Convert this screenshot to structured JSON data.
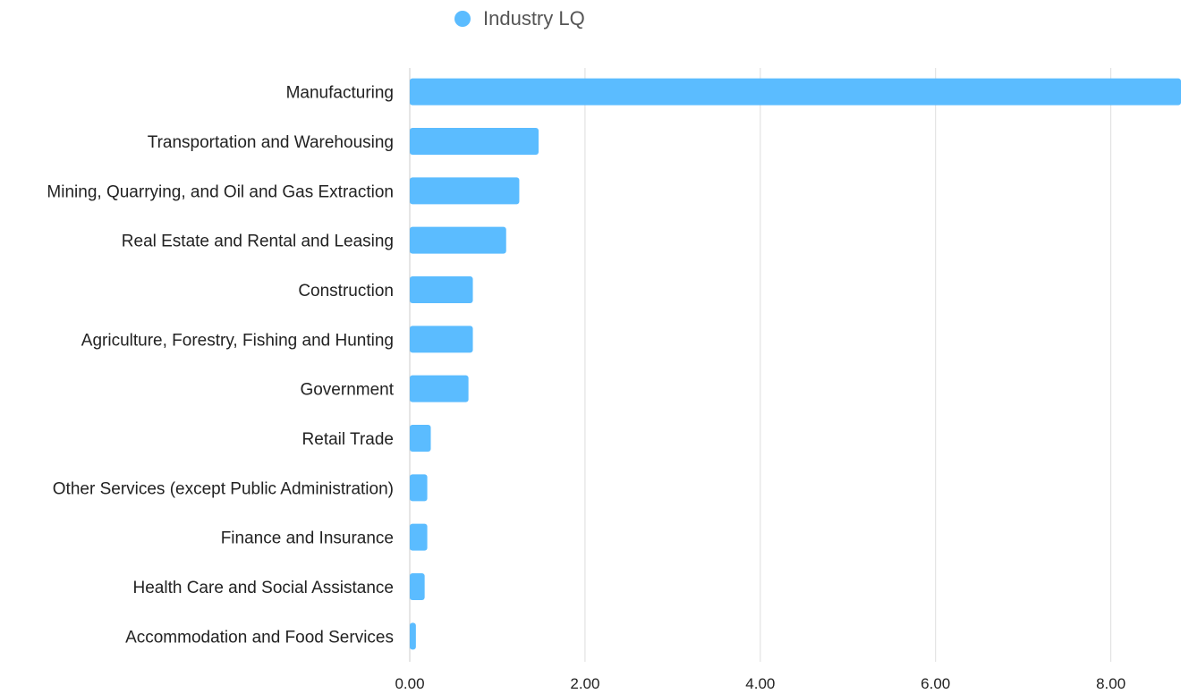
{
  "legend": {
    "label": "Industry LQ"
  },
  "colors": {
    "bar": "#5BBCFF",
    "grid": "#DDDDDD",
    "text": "#222222",
    "legend_text": "#555555"
  },
  "chart_data": {
    "type": "bar",
    "orientation": "horizontal",
    "categories": [
      "Manufacturing",
      "Transportation and Warehousing",
      "Mining, Quarrying, and Oil and Gas Extraction",
      "Real Estate and Rental and Leasing",
      "Construction",
      "Agriculture, Forestry, Fishing and Hunting",
      "Government",
      "Retail Trade",
      "Other Services (except Public Administration)",
      "Finance and Insurance",
      "Health Care and Social Assistance",
      "Accommodation and Food Services"
    ],
    "series": [
      {
        "name": "Industry LQ",
        "values": [
          8.8,
          1.47,
          1.25,
          1.1,
          0.72,
          0.72,
          0.67,
          0.24,
          0.2,
          0.2,
          0.17,
          0.07
        ]
      }
    ],
    "xlim": [
      0,
      8.8
    ],
    "x_ticks": [
      "0.00",
      "2.00",
      "4.00",
      "6.00",
      "8.00"
    ],
    "x_tick_values": [
      0,
      2,
      4,
      6,
      8
    ],
    "grid": true,
    "legend_position": "top-center"
  }
}
